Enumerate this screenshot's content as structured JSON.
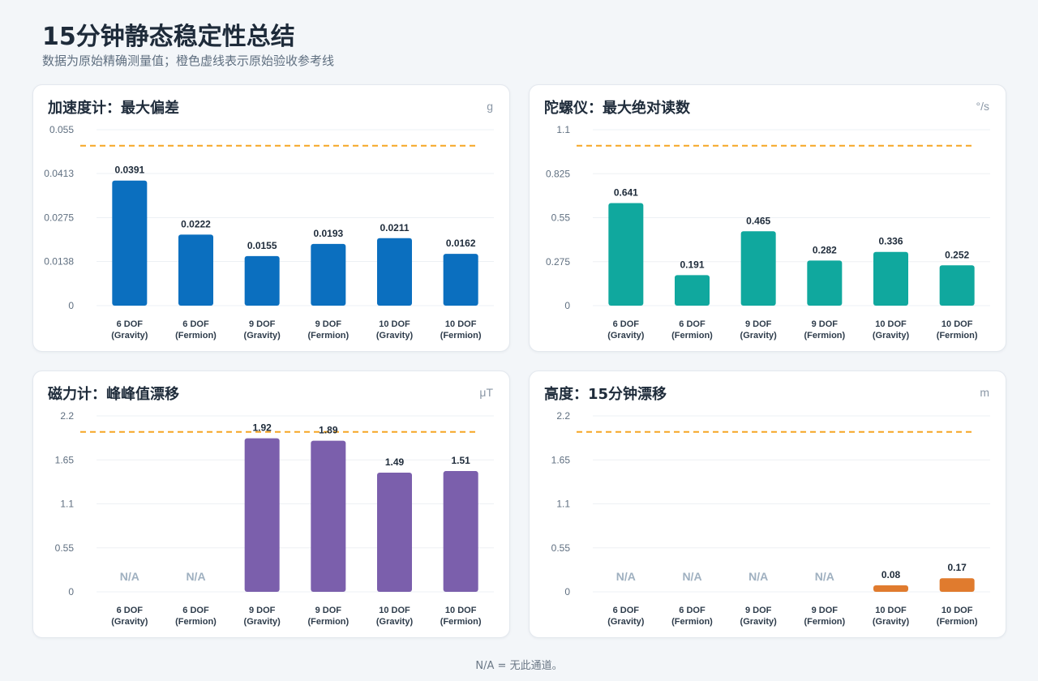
{
  "page": {
    "title": "15分钟静态稳定性总结",
    "subtitle": "数据为原始精确测量值；橙色虚线表示原始验收参考线",
    "footnote": "N/A = 无此通道。"
  },
  "colors": {
    "accel": "#0b6fbf",
    "gyro": "#10a89e",
    "mag": "#7b5fac",
    "alt": "#e07b2e",
    "reference_line": "#f5a623",
    "na_text": "#9fb0c0"
  },
  "chart_data": [
    {
      "id": "accel",
      "type": "bar",
      "title": "加速度计：最大偏差",
      "unit": "g",
      "ylim": [
        0,
        0.055
      ],
      "yticks": [
        0,
        0.0138,
        0.0275,
        0.0413,
        0.055
      ],
      "ytick_labels": [
        "0",
        "0.0138",
        "0.0275",
        "0.0413",
        "0.055"
      ],
      "reference_line": 0.05,
      "categories": [
        [
          "6 DOF",
          "(Gravity)"
        ],
        [
          "6 DOF",
          "(Fermion)"
        ],
        [
          "9 DOF",
          "(Gravity)"
        ],
        [
          "9 DOF",
          "(Fermion)"
        ],
        [
          "10 DOF",
          "(Gravity)"
        ],
        [
          "10 DOF",
          "(Fermion)"
        ]
      ],
      "values": [
        0.0391,
        0.0222,
        0.0155,
        0.0193,
        0.0211,
        0.0162
      ],
      "value_labels": [
        "0.0391",
        "0.0222",
        "0.0155",
        "0.0193",
        "0.0211",
        "0.0162"
      ],
      "color": "#0b6fbf"
    },
    {
      "id": "gyro",
      "type": "bar",
      "title": "陀螺仪：最大绝对读数",
      "unit": "°/s",
      "ylim": [
        0,
        1.1
      ],
      "yticks": [
        0,
        0.275,
        0.55,
        0.825,
        1.1
      ],
      "ytick_labels": [
        "0",
        "0.275",
        "0.55",
        "0.825",
        "1.1"
      ],
      "reference_line": 1.0,
      "categories": [
        [
          "6 DOF",
          "(Gravity)"
        ],
        [
          "6 DOF",
          "(Fermion)"
        ],
        [
          "9 DOF",
          "(Gravity)"
        ],
        [
          "9 DOF",
          "(Fermion)"
        ],
        [
          "10 DOF",
          "(Gravity)"
        ],
        [
          "10 DOF",
          "(Fermion)"
        ]
      ],
      "values": [
        0.641,
        0.191,
        0.465,
        0.282,
        0.336,
        0.252
      ],
      "value_labels": [
        "0.641",
        "0.191",
        "0.465",
        "0.282",
        "0.336",
        "0.252"
      ],
      "color": "#10a89e"
    },
    {
      "id": "mag",
      "type": "bar",
      "title": "磁力计：峰峰值漂移",
      "unit": "μT",
      "ylim": [
        0,
        2.2
      ],
      "yticks": [
        0,
        0.55,
        1.1,
        1.65,
        2.2
      ],
      "ytick_labels": [
        "0",
        "0.55",
        "1.1",
        "1.65",
        "2.2"
      ],
      "reference_line": 2.0,
      "categories": [
        [
          "6 DOF",
          "(Gravity)"
        ],
        [
          "6 DOF",
          "(Fermion)"
        ],
        [
          "9 DOF",
          "(Gravity)"
        ],
        [
          "9 DOF",
          "(Fermion)"
        ],
        [
          "10 DOF",
          "(Gravity)"
        ],
        [
          "10 DOF",
          "(Fermion)"
        ]
      ],
      "values": [
        null,
        null,
        1.92,
        1.89,
        1.49,
        1.51
      ],
      "value_labels": [
        "N/A",
        "N/A",
        "1.92",
        "1.89",
        "1.49",
        "1.51"
      ],
      "color": "#7b5fac"
    },
    {
      "id": "alt",
      "type": "bar",
      "title": "高度：15分钟漂移",
      "unit": "m",
      "ylim": [
        0,
        2.2
      ],
      "yticks": [
        0,
        0.55,
        1.1,
        1.65,
        2.2
      ],
      "ytick_labels": [
        "0",
        "0.55",
        "1.1",
        "1.65",
        "2.2"
      ],
      "reference_line": 2.0,
      "categories": [
        [
          "6 DOF",
          "(Gravity)"
        ],
        [
          "6 DOF",
          "(Fermion)"
        ],
        [
          "9 DOF",
          "(Gravity)"
        ],
        [
          "9 DOF",
          "(Fermion)"
        ],
        [
          "10 DOF",
          "(Gravity)"
        ],
        [
          "10 DOF",
          "(Fermion)"
        ]
      ],
      "values": [
        null,
        null,
        null,
        null,
        0.08,
        0.17
      ],
      "value_labels": [
        "N/A",
        "N/A",
        "N/A",
        "N/A",
        "0.08",
        "0.17"
      ],
      "color": "#e07b2e"
    }
  ]
}
